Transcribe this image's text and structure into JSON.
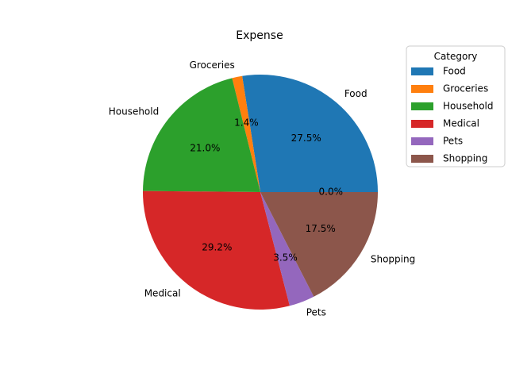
{
  "chart_data": {
    "type": "pie",
    "title": "Expense",
    "legend_title": "Category",
    "legend_position": "upper-right-outside",
    "start_angle_deg": 0,
    "direction": "counterclockwise",
    "slices": [
      {
        "name": "Food",
        "value": 27.5,
        "label": "27.5%",
        "color": "#1f77b4"
      },
      {
        "name": "Groceries",
        "value": 1.4,
        "label": "1.4%",
        "color": "#ff7f0e"
      },
      {
        "name": "Household",
        "value": 21.0,
        "label": "21.0%",
        "color": "#2ca02c"
      },
      {
        "name": "Medical",
        "value": 29.2,
        "label": "29.2%",
        "color": "#d62728"
      },
      {
        "name": "Pets",
        "value": 3.5,
        "label": "3.5%",
        "color": "#9467bd"
      },
      {
        "name": "Shopping",
        "value": 17.5,
        "label": "17.5%",
        "color": "#8c564b"
      },
      {
        "name": "",
        "value": 0.0,
        "label": "0.0%",
        "color": "#e377c2"
      }
    ]
  }
}
